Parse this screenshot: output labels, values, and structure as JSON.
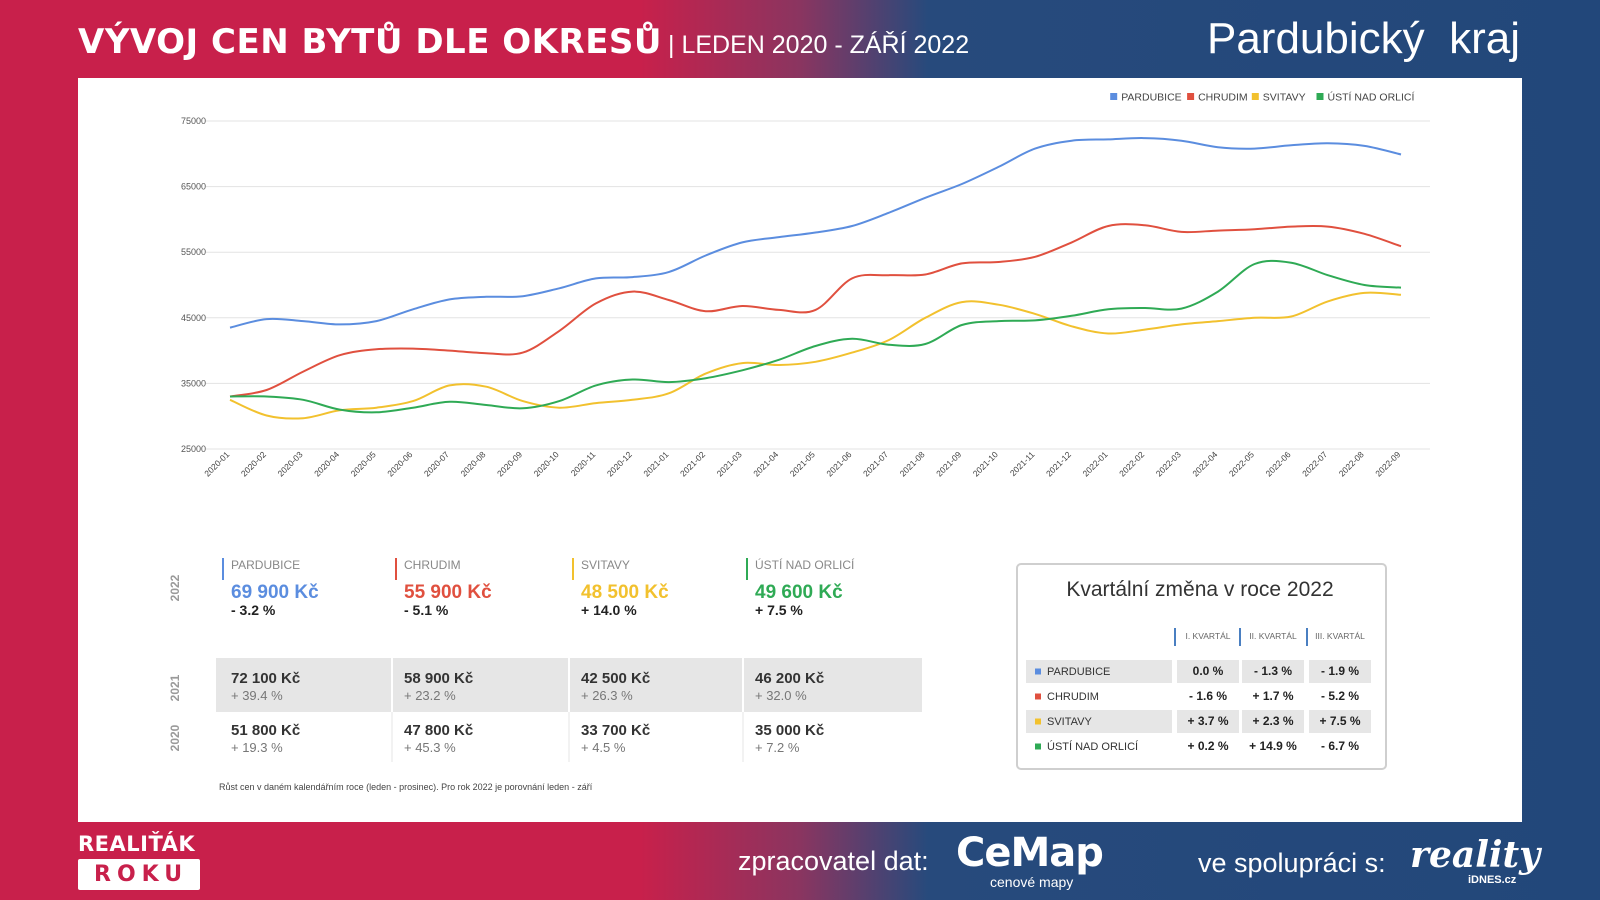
{
  "header": {
    "title": "VÝVOJ CEN BYTŮ DLE OKRESŮ",
    "subtitle": "| LEDEN 2020 - ZÁŘÍ 2022",
    "region": "Pardubický  kraj"
  },
  "colors": {
    "pardubice": "#5b8ddf",
    "chrudim": "#e0503f",
    "svitavy": "#f2c12e",
    "usti": "#2faa55",
    "brand_red": "#c8204b",
    "brand_blue": "#22477a"
  },
  "chart_data": {
    "type": "line",
    "x": [
      "2020-01",
      "2020-02",
      "2020-03",
      "2020-04",
      "2020-05",
      "2020-06",
      "2020-07",
      "2020-08",
      "2020-09",
      "2020-10",
      "2020-11",
      "2020-12",
      "2021-01",
      "2021-02",
      "2021-03",
      "2021-04",
      "2021-05",
      "2021-06",
      "2021-07",
      "2021-08",
      "2021-09",
      "2021-10",
      "2021-11",
      "2021-12",
      "2022-01",
      "2022-02",
      "2022-03",
      "2022-04",
      "2022-05",
      "2022-06",
      "2022-07",
      "2022-08",
      "2022-09"
    ],
    "ylim": [
      25000,
      75000
    ],
    "yticks": [
      "75000",
      "65000",
      "55000",
      "45000",
      "35000",
      "25000"
    ],
    "ytick_values": [
      75000,
      65000,
      55000,
      45000,
      35000,
      25000
    ],
    "grid": true,
    "legend_position": "top-right",
    "series": [
      {
        "name": "PARDUBICE",
        "color": "#5b8ddf",
        "values": [
          43500,
          44800,
          44500,
          44000,
          44500,
          46300,
          47800,
          48200,
          48300,
          49500,
          51000,
          51200,
          52000,
          54500,
          56500,
          57300,
          58000,
          59000,
          61000,
          63300,
          65400,
          68000,
          70800,
          72000,
          72200,
          72400,
          72000,
          71000,
          70800,
          71300,
          71600,
          71200,
          69900
        ]
      },
      {
        "name": "CHRUDIM",
        "color": "#e0503f",
        "values": [
          33000,
          34000,
          36800,
          39300,
          40200,
          40300,
          40000,
          39600,
          39700,
          43000,
          47200,
          49000,
          47700,
          46000,
          46800,
          46200,
          46200,
          51000,
          51500,
          51600,
          53300,
          53500,
          54300,
          56500,
          59000,
          59100,
          58100,
          58300,
          58500,
          58900,
          58900,
          57800,
          55900
        ]
      },
      {
        "name": "SVITAVY",
        "color": "#f2c12e",
        "values": [
          32500,
          30100,
          29700,
          30900,
          31300,
          32300,
          34700,
          34500,
          32300,
          31300,
          32000,
          32500,
          33500,
          36500,
          38100,
          37800,
          38300,
          39700,
          41600,
          45000,
          47400,
          47000,
          45600,
          43700,
          42600,
          43200,
          44000,
          44500,
          45000,
          45200,
          47500,
          48800,
          48500
        ]
      },
      {
        "name": "ÚSTÍ NAD ORLICÍ",
        "color": "#2faa55",
        "values": [
          33000,
          33000,
          32500,
          31000,
          30600,
          31300,
          32200,
          31700,
          31200,
          32300,
          34700,
          35600,
          35200,
          35800,
          37000,
          38600,
          40700,
          41800,
          40900,
          41000,
          43900,
          44500,
          44600,
          45300,
          46300,
          46500,
          46400,
          49000,
          53200,
          53400,
          51500,
          50000,
          49600
        ]
      }
    ]
  },
  "stats": {
    "year_labels": [
      "2022",
      "2021",
      "2020"
    ],
    "districts": [
      {
        "name": "PARDUBICE",
        "color": "#5b8ddf",
        "p2022": "69 900 Kč",
        "c2022": "- 3.2 %",
        "p2021": "72 100 Kč",
        "c2021": "+ 39.4 %",
        "p2020": "51 800 Kč",
        "c2020": "+ 19.3 %"
      },
      {
        "name": "CHRUDIM",
        "color": "#e0503f",
        "p2022": "55 900 Kč",
        "c2022": "- 5.1 %",
        "p2021": "58 900 Kč",
        "c2021": "+ 23.2 %",
        "p2020": "47 800 Kč",
        "c2020": "+ 45.3 %"
      },
      {
        "name": "SVITAVY",
        "color": "#f2c12e",
        "p2022": "48 500 Kč",
        "c2022": "+ 14.0 %",
        "p2021": "42 500 Kč",
        "c2021": "+ 26.3 %",
        "p2020": "33 700 Kč",
        "c2020": "+ 4.5 %"
      },
      {
        "name": "ÚSTÍ NAD ORLICÍ",
        "color": "#2faa55",
        "p2022": "49 600 Kč",
        "c2022": "+ 7.5 %",
        "p2021": "46 200 Kč",
        "c2021": "+ 32.0 %",
        "p2020": "35 000 Kč",
        "c2020": "+ 7.2 %"
      }
    ],
    "footnote": "Růst cen v daném kalendářním roce (leden - prosinec). Pro rok 2022 je porovnání leden - září"
  },
  "quarterly": {
    "title": "Kvartální změna v roce 2022",
    "headers": [
      "I. KVARTÁL",
      "II. KVARTÁL",
      "III. KVARTÁL"
    ],
    "rows": [
      {
        "name": "PARDUBICE",
        "color": "#5b8ddf",
        "values": [
          "0.0 %",
          "- 1.3 %",
          "- 1.9 %"
        ]
      },
      {
        "name": "CHRUDIM",
        "color": "#e0503f",
        "values": [
          "- 1.6 %",
          "+ 1.7 %",
          "- 5.2 %"
        ]
      },
      {
        "name": "SVITAVY",
        "color": "#f2c12e",
        "values": [
          "+ 3.7 %",
          "+ 2.3 %",
          "+ 7.5 %"
        ]
      },
      {
        "name": "ÚSTÍ NAD ORLICÍ",
        "color": "#2faa55",
        "values": [
          "+ 0.2 %",
          "+ 14.9 %",
          "- 6.7 %"
        ]
      }
    ]
  },
  "footer": {
    "brand_line1": "REALIŤÁK",
    "brand_line2": "ROKU",
    "processor_label": "zpracovatel dat:",
    "cemap_name": "CeMap",
    "cemap_tagline": "cenové mapy",
    "partner_label": "ve spolupráci s:",
    "reality_name": "reality",
    "reality_tagline": "iDNES.cz"
  }
}
